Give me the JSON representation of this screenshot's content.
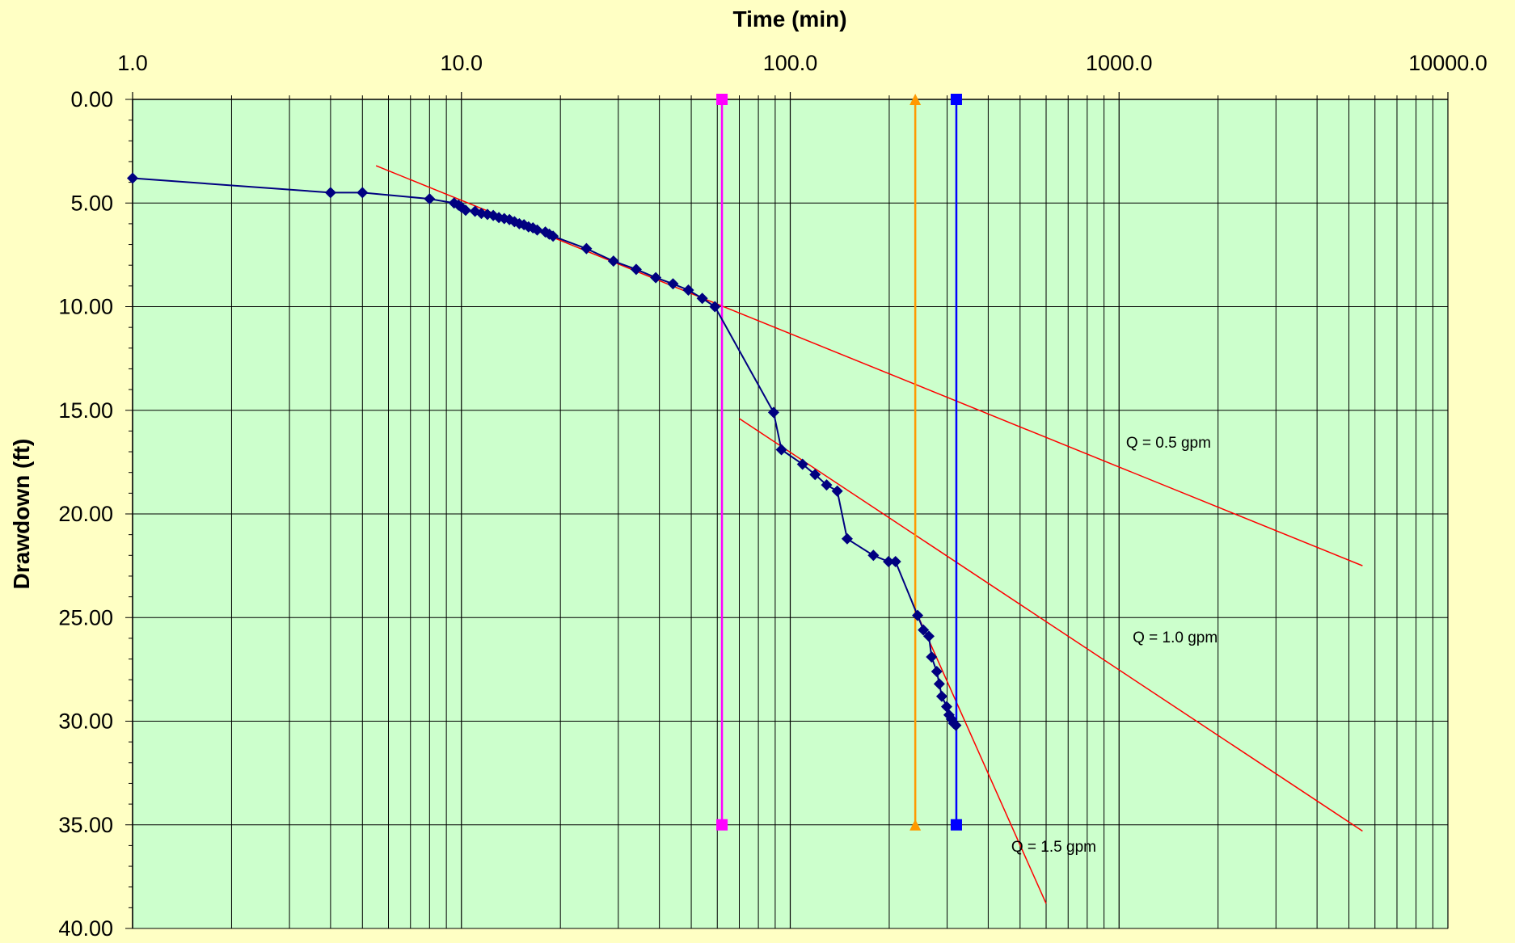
{
  "chart_data": {
    "type": "scatter",
    "xscale": "log",
    "xlim": [
      1,
      10000
    ],
    "ylim": [
      0,
      40
    ],
    "yreversed": true,
    "grid": true,
    "xlabel": "Time (min)",
    "ylabel": "Drawdown (ft)",
    "xtick_labels": [
      "1.0",
      "10.0",
      "100.0",
      "1000.0",
      "10000.0"
    ],
    "xtick_values": [
      1,
      10,
      100,
      1000,
      10000
    ],
    "ytick_labels": [
      "0.00",
      "5.00",
      "10.00",
      "15.00",
      "20.00",
      "25.00",
      "30.00",
      "35.00",
      "40.00"
    ],
    "ytick_values": [
      0,
      5,
      10,
      15,
      20,
      25,
      30,
      35,
      40
    ],
    "colors": {
      "plot_background": "#ccffcc",
      "page_background": "#ffffc4",
      "grid": "#000000",
      "data_series": "#000080",
      "fit_lines": "#ff0000",
      "marker_q05": "#ff00ff",
      "marker_q10": "#ff9900",
      "marker_q15": "#0000ff"
    },
    "series": [
      {
        "type": "line-marker",
        "marker": "diamond",
        "color": "#000080",
        "x": [
          1,
          4,
          5,
          8,
          9.5,
          9.8,
          10,
          10.3,
          11,
          11.5,
          12,
          12.5,
          13,
          13.5,
          14,
          14.5,
          15,
          15.5,
          16,
          16.5,
          17,
          18,
          18.5,
          19,
          24,
          29,
          34,
          39,
          44,
          49,
          54,
          59,
          89,
          94,
          109,
          119,
          129,
          139,
          149,
          179,
          199,
          209,
          244,
          254,
          264,
          269,
          279,
          284,
          289,
          299,
          304,
          309,
          314,
          319
        ],
        "y": [
          3.8,
          4.5,
          4.5,
          4.8,
          5.0,
          5.1,
          5.2,
          5.35,
          5.4,
          5.5,
          5.55,
          5.6,
          5.7,
          5.75,
          5.8,
          5.9,
          6.0,
          6.05,
          6.15,
          6.2,
          6.3,
          6.4,
          6.5,
          6.6,
          7.2,
          7.8,
          8.2,
          8.6,
          8.9,
          9.2,
          9.6,
          10.0,
          15.1,
          16.9,
          17.6,
          18.1,
          18.6,
          18.9,
          21.2,
          22.0,
          22.3,
          22.3,
          24.9,
          25.6,
          25.9,
          26.9,
          27.6,
          28.2,
          28.8,
          29.3,
          29.7,
          29.9,
          30.1,
          30.2
        ]
      },
      {
        "type": "line",
        "color": "#ff0000",
        "x": [
          5.5,
          5500
        ],
        "y": [
          3.2,
          22.5
        ],
        "label": "Q = 0.5 gpm"
      },
      {
        "type": "line",
        "color": "#ff0000",
        "x": [
          70,
          5500
        ],
        "y": [
          15.4,
          35.3
        ],
        "label": "Q = 1.0 gpm"
      },
      {
        "type": "line",
        "color": "#ff0000",
        "x": [
          235,
          600
        ],
        "y": [
          24.3,
          38.8
        ],
        "label": "Q = 1.5 gpm"
      },
      {
        "type": "vline",
        "marker": "square",
        "color": "#ff00ff",
        "x": [
          62,
          62
        ],
        "y": [
          0,
          35
        ]
      },
      {
        "type": "vline",
        "marker": "triangle",
        "color": "#ff9900",
        "x": [
          240,
          240
        ],
        "y": [
          0,
          35
        ]
      },
      {
        "type": "vline",
        "marker": "square",
        "color": "#0000ff",
        "x": [
          320,
          320
        ],
        "y": [
          0,
          35
        ]
      }
    ],
    "annotations": [
      {
        "text": "Q = 0.5 gpm",
        "x": 1050,
        "y": 16.8
      },
      {
        "text": "Q = 1.0 gpm",
        "x": 1100,
        "y": 26.2
      },
      {
        "text": "Q = 1.5 gpm",
        "x": 470,
        "y": 36.3
      }
    ]
  }
}
